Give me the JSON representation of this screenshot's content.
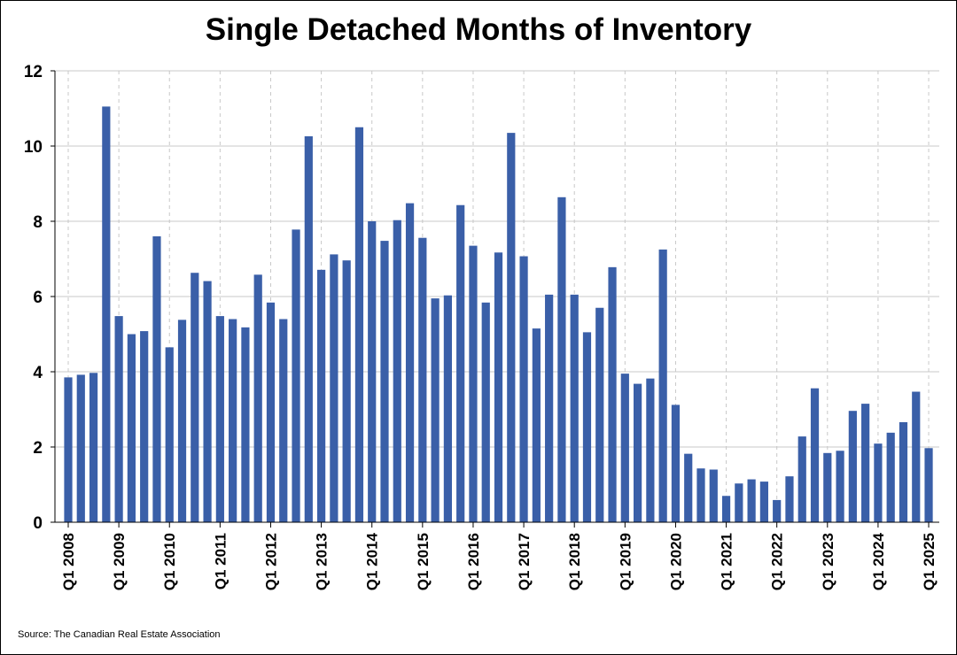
{
  "chart_data": {
    "type": "bar",
    "title": "Single Detached Months of Inventory",
    "xlabel": "",
    "ylabel": "",
    "ylim": [
      0,
      12
    ],
    "yticks": [
      0,
      2,
      4,
      6,
      8,
      10,
      12
    ],
    "x_tick_labels": [
      "Q1 2008",
      "Q1 2009",
      "Q1 2010",
      "Q1 2011",
      "Q1 2012",
      "Q1 2013",
      "Q1 2014",
      "Q1 2015",
      "Q1 2016",
      "Q1 2017",
      "Q1 2018",
      "Q1 2019",
      "Q1 2020",
      "Q1 2021",
      "Q1 2022",
      "Q1 2023",
      "Q1 2024",
      "Q1 2025"
    ],
    "grid": "horizontal solid, vertical dashed at year ticks",
    "bar_color": "#3a5fa8",
    "categories": [
      "Q1 2008",
      "Q2 2008",
      "Q3 2008",
      "Q4 2008",
      "Q1 2009",
      "Q2 2009",
      "Q3 2009",
      "Q4 2009",
      "Q1 2010",
      "Q2 2010",
      "Q3 2010",
      "Q4 2010",
      "Q1 2011",
      "Q2 2011",
      "Q3 2011",
      "Q4 2011",
      "Q1 2012",
      "Q2 2012",
      "Q3 2012",
      "Q4 2012",
      "Q1 2013",
      "Q2 2013",
      "Q3 2013",
      "Q4 2013",
      "Q1 2014",
      "Q2 2014",
      "Q3 2014",
      "Q4 2014",
      "Q1 2015",
      "Q2 2015",
      "Q3 2015",
      "Q4 2015",
      "Q1 2016",
      "Q2 2016",
      "Q3 2016",
      "Q4 2016",
      "Q1 2017",
      "Q2 2017",
      "Q3 2017",
      "Q4 2017",
      "Q1 2018",
      "Q2 2018",
      "Q3 2018",
      "Q4 2018",
      "Q1 2019",
      "Q2 2019",
      "Q3 2019",
      "Q4 2019",
      "Q1 2020",
      "Q2 2020",
      "Q3 2020",
      "Q4 2020",
      "Q1 2021",
      "Q2 2021",
      "Q3 2021",
      "Q4 2021",
      "Q1 2022",
      "Q2 2022",
      "Q3 2022",
      "Q4 2022",
      "Q1 2023",
      "Q2 2023",
      "Q3 2023",
      "Q4 2023",
      "Q1 2024",
      "Q2 2024",
      "Q3 2024",
      "Q4 2024",
      "Q1 2025"
    ],
    "values": [
      3.85,
      3.92,
      3.97,
      11.05,
      5.48,
      5.0,
      5.08,
      7.6,
      4.65,
      5.38,
      6.63,
      6.41,
      5.48,
      5.4,
      5.18,
      6.58,
      5.84,
      5.4,
      7.78,
      10.26,
      6.71,
      7.12,
      6.96,
      10.5,
      8.0,
      7.48,
      8.03,
      8.48,
      7.56,
      5.95,
      6.03,
      8.43,
      7.35,
      5.84,
      7.17,
      10.35,
      7.07,
      5.15,
      6.05,
      8.64,
      6.05,
      5.05,
      5.7,
      6.78,
      3.95,
      3.68,
      3.82,
      7.25,
      3.12,
      1.82,
      1.43,
      1.4,
      0.7,
      1.03,
      1.14,
      1.08,
      0.59,
      1.22,
      2.28,
      3.56,
      1.84,
      1.9,
      2.96,
      3.15,
      2.09,
      2.38,
      2.66,
      3.47,
      1.97
    ]
  },
  "source_note": "Source: The Canadian Real Estate Association"
}
